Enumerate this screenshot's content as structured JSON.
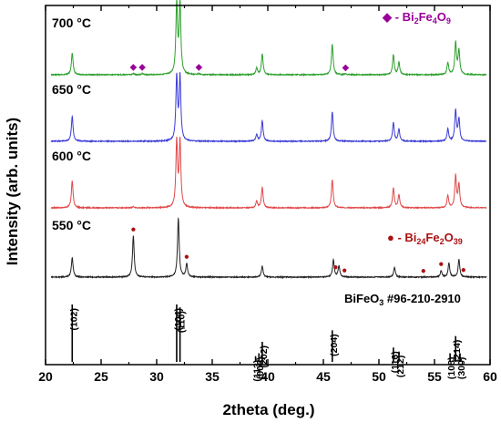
{
  "chart_data": {
    "type": "line",
    "title": "",
    "xlabel": "2theta (deg.)",
    "ylabel": "Intensity (arb. units)",
    "xlim": [
      20,
      60
    ],
    "x_ticks": [
      "20",
      "25",
      "30",
      "35",
      "40",
      "45",
      "50",
      "55",
      "60"
    ],
    "y_ticks_shown": false,
    "grid": false,
    "series": [
      {
        "name": "700 °C",
        "color": "#2ca02c",
        "baseline": 0.0,
        "peaks": [
          {
            "x": 22.4,
            "h": 1.0
          },
          {
            "x": 27.9,
            "h": 0.05
          },
          {
            "x": 28.7,
            "h": 0.05
          },
          {
            "x": 31.8,
            "h": 3.2
          },
          {
            "x": 32.1,
            "h": 3.2
          },
          {
            "x": 33.8,
            "h": 0.04
          },
          {
            "x": 39.0,
            "h": 0.3
          },
          {
            "x": 39.5,
            "h": 0.95
          },
          {
            "x": 45.8,
            "h": 1.4
          },
          {
            "x": 47.0,
            "h": 0.04
          },
          {
            "x": 51.3,
            "h": 0.9
          },
          {
            "x": 51.8,
            "h": 0.55
          },
          {
            "x": 56.2,
            "h": 0.55
          },
          {
            "x": 56.9,
            "h": 1.45
          },
          {
            "x": 57.2,
            "h": 1.1
          }
        ]
      },
      {
        "name": "650 °C",
        "color": "#3b3bd6",
        "baseline": 0.0,
        "peaks": [
          {
            "x": 22.4,
            "h": 1.15
          },
          {
            "x": 31.8,
            "h": 2.9
          },
          {
            "x": 32.1,
            "h": 2.9
          },
          {
            "x": 39.0,
            "h": 0.3
          },
          {
            "x": 39.5,
            "h": 0.95
          },
          {
            "x": 45.8,
            "h": 1.35
          },
          {
            "x": 51.3,
            "h": 0.85
          },
          {
            "x": 51.8,
            "h": 0.55
          },
          {
            "x": 56.2,
            "h": 0.55
          },
          {
            "x": 56.9,
            "h": 1.4
          },
          {
            "x": 57.2,
            "h": 1.0
          }
        ]
      },
      {
        "name": "600 °C",
        "color": "#e04848",
        "baseline": 0.0,
        "peaks": [
          {
            "x": 22.4,
            "h": 1.25
          },
          {
            "x": 27.9,
            "h": 0.06
          },
          {
            "x": 31.8,
            "h": 3.0
          },
          {
            "x": 32.1,
            "h": 3.0
          },
          {
            "x": 39.0,
            "h": 0.3
          },
          {
            "x": 39.5,
            "h": 0.95
          },
          {
            "x": 45.8,
            "h": 1.3
          },
          {
            "x": 51.3,
            "h": 0.9
          },
          {
            "x": 51.8,
            "h": 0.6
          },
          {
            "x": 56.2,
            "h": 0.55
          },
          {
            "x": 56.9,
            "h": 1.45
          },
          {
            "x": 57.2,
            "h": 1.05
          }
        ]
      },
      {
        "name": "550 °C",
        "color": "#222222",
        "baseline": 0.0,
        "peaks": [
          {
            "x": 22.4,
            "h": 0.9
          },
          {
            "x": 27.9,
            "h": 1.9
          },
          {
            "x": 31.95,
            "h": 2.7
          },
          {
            "x": 32.7,
            "h": 0.6
          },
          {
            "x": 39.5,
            "h": 0.5
          },
          {
            "x": 45.9,
            "h": 0.8
          },
          {
            "x": 46.4,
            "h": 0.5
          },
          {
            "x": 51.4,
            "h": 0.45
          },
          {
            "x": 55.6,
            "h": 0.3
          },
          {
            "x": 56.3,
            "h": 0.65
          },
          {
            "x": 57.2,
            "h": 0.8
          }
        ]
      }
    ],
    "reference": {
      "label_main": "BiFeO",
      "label_sub": "3",
      "label_rest": " #96-210-2910",
      "lines": [
        {
          "x": 22.4,
          "h": 1.0,
          "hkl": "(102)"
        },
        {
          "x": 31.8,
          "h": 1.0,
          "hkl": "(104)"
        },
        {
          "x": 32.1,
          "h": 0.95,
          "hkl": "(110)"
        },
        {
          "x": 38.9,
          "h": 0.1,
          "hkl": "(113)"
        },
        {
          "x": 39.2,
          "h": 0.15,
          "hkl": "(006)"
        },
        {
          "x": 39.5,
          "h": 0.35,
          "hkl": "(202)"
        },
        {
          "x": 45.8,
          "h": 0.55,
          "hkl": "(204)"
        },
        {
          "x": 51.3,
          "h": 0.25,
          "hkl": "(116)"
        },
        {
          "x": 51.8,
          "h": 0.18,
          "hkl": "(212)"
        },
        {
          "x": 56.4,
          "h": 0.15,
          "hkl": "(108)"
        },
        {
          "x": 56.9,
          "h": 0.45,
          "hkl": "(214)"
        },
        {
          "x": 57.3,
          "h": 0.15,
          "hkl": "(300)"
        }
      ]
    },
    "markers": {
      "bi2fe4o9": {
        "symbol": "◆",
        "color": "#990099",
        "legend_prefix": "◆ - Bi",
        "legend_parts": [
          "Bi",
          "2",
          "Fe",
          "4",
          "O",
          "9"
        ],
        "on_series": "700 °C",
        "positions": [
          27.9,
          28.7,
          33.8,
          47.0
        ]
      },
      "bi24fe2o39": {
        "symbol": "●",
        "color": "#aa1111",
        "legend_parts": [
          "Bi",
          "24",
          "Fe",
          "2",
          "O",
          "39"
        ],
        "on_series": "550 °C",
        "positions": [
          27.9,
          32.7,
          46.1,
          46.9,
          54.0,
          55.6,
          57.6
        ]
      }
    }
  }
}
